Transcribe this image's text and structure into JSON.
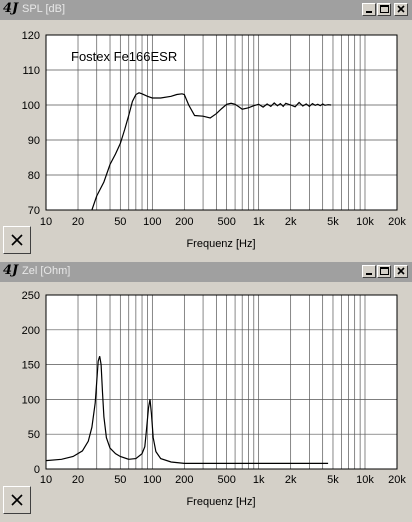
{
  "windows": [
    {
      "title": "SPL [dB]",
      "logo": "4J",
      "annotation": "Fostex Fe166ESR",
      "chart_data": {
        "type": "line",
        "xscale": "log",
        "xlim": [
          10,
          20000
        ],
        "ylim": [
          70,
          120
        ],
        "xlabel": "Frequenz [Hz]",
        "ylabel": "",
        "xtick_values": [
          10,
          20,
          50,
          100,
          200,
          500,
          1000,
          2000,
          5000,
          10000,
          20000
        ],
        "xtick_labels": [
          "10",
          "20",
          "50",
          "100",
          "200",
          "500",
          "1k",
          "2k",
          "5k",
          "10k",
          "20k"
        ],
        "ytick_values": [
          70,
          80,
          90,
          100,
          110,
          120
        ],
        "ytick_labels": [
          "70",
          "80",
          "90",
          "100",
          "110",
          "120"
        ],
        "grid": true,
        "series": [
          {
            "x": [
              27,
              30,
              35,
              40,
              45,
              50,
              55,
              60,
              65,
              70,
              75,
              80,
              90,
              100,
              120,
              150,
              170,
              190,
              200,
              220,
              250,
              300,
              350,
              400,
              450,
              500,
              550,
              600,
              650,
              700,
              800,
              900,
              1000,
              1100,
              1200,
              1300,
              1400,
              1500,
              1600,
              1700,
              1800,
              2000,
              2200,
              2400,
              2600,
              2800,
              3000,
              3200,
              3400,
              3600,
              3800,
              4000,
              4200,
              4500,
              4800
            ],
            "y": [
              70,
              74,
              78,
              83,
              86,
              89,
              93,
              97,
              101,
              103,
              103.5,
              103.2,
              102.5,
              102,
              102,
              102.5,
              103,
              103.2,
              103,
              100,
              97,
              96.8,
              96.3,
              97.5,
              99,
              100.2,
              100.5,
              100.2,
              99.5,
              98.8,
              99.2,
              99.8,
              100.2,
              99.4,
              100.3,
              99.6,
              100.6,
              99.8,
              100.4,
              99.6,
              100.5,
              100.0,
              99.5,
              100.7,
              99.7,
              100.3,
              99.6,
              100.4,
              99.9,
              100.2,
              99.8,
              100.3,
              99.9,
              100.1,
              100
            ]
          }
        ]
      }
    },
    {
      "title": "Zel [Ohm]",
      "logo": "4J",
      "chart_data": {
        "type": "line",
        "xscale": "log",
        "xlim": [
          10,
          20000
        ],
        "ylim": [
          0,
          250
        ],
        "xlabel": "Frequenz [Hz]",
        "ylabel": "",
        "xtick_values": [
          10,
          20,
          50,
          100,
          200,
          500,
          1000,
          2000,
          5000,
          10000,
          20000
        ],
        "xtick_labels": [
          "10",
          "20",
          "50",
          "100",
          "200",
          "500",
          "1k",
          "2k",
          "5k",
          "10k",
          "20k"
        ],
        "ytick_values": [
          0,
          50,
          100,
          150,
          200,
          250
        ],
        "ytick_labels": [
          "0",
          "50",
          "100",
          "150",
          "200",
          "250"
        ],
        "grid": true,
        "series": [
          {
            "x": [
              10,
              14,
              18,
              22,
              25,
              27,
              29,
              30,
              31,
              32,
              33,
              34,
              35,
              37,
              40,
              45,
              50,
              60,
              70,
              80,
              85,
              88,
              92,
              95,
              98,
              102,
              108,
              120,
              150,
              200,
              300,
              500,
              1000,
              2000,
              4500
            ],
            "y": [
              12,
              14,
              18,
              26,
              40,
              60,
              95,
              125,
              155,
              162,
              150,
              110,
              75,
              45,
              30,
              22,
              18,
              14,
              15,
              22,
              32,
              55,
              88,
              100,
              80,
              45,
              25,
              15,
              10,
              8,
              8,
              8,
              8,
              8,
              8
            ]
          }
        ]
      }
    }
  ]
}
